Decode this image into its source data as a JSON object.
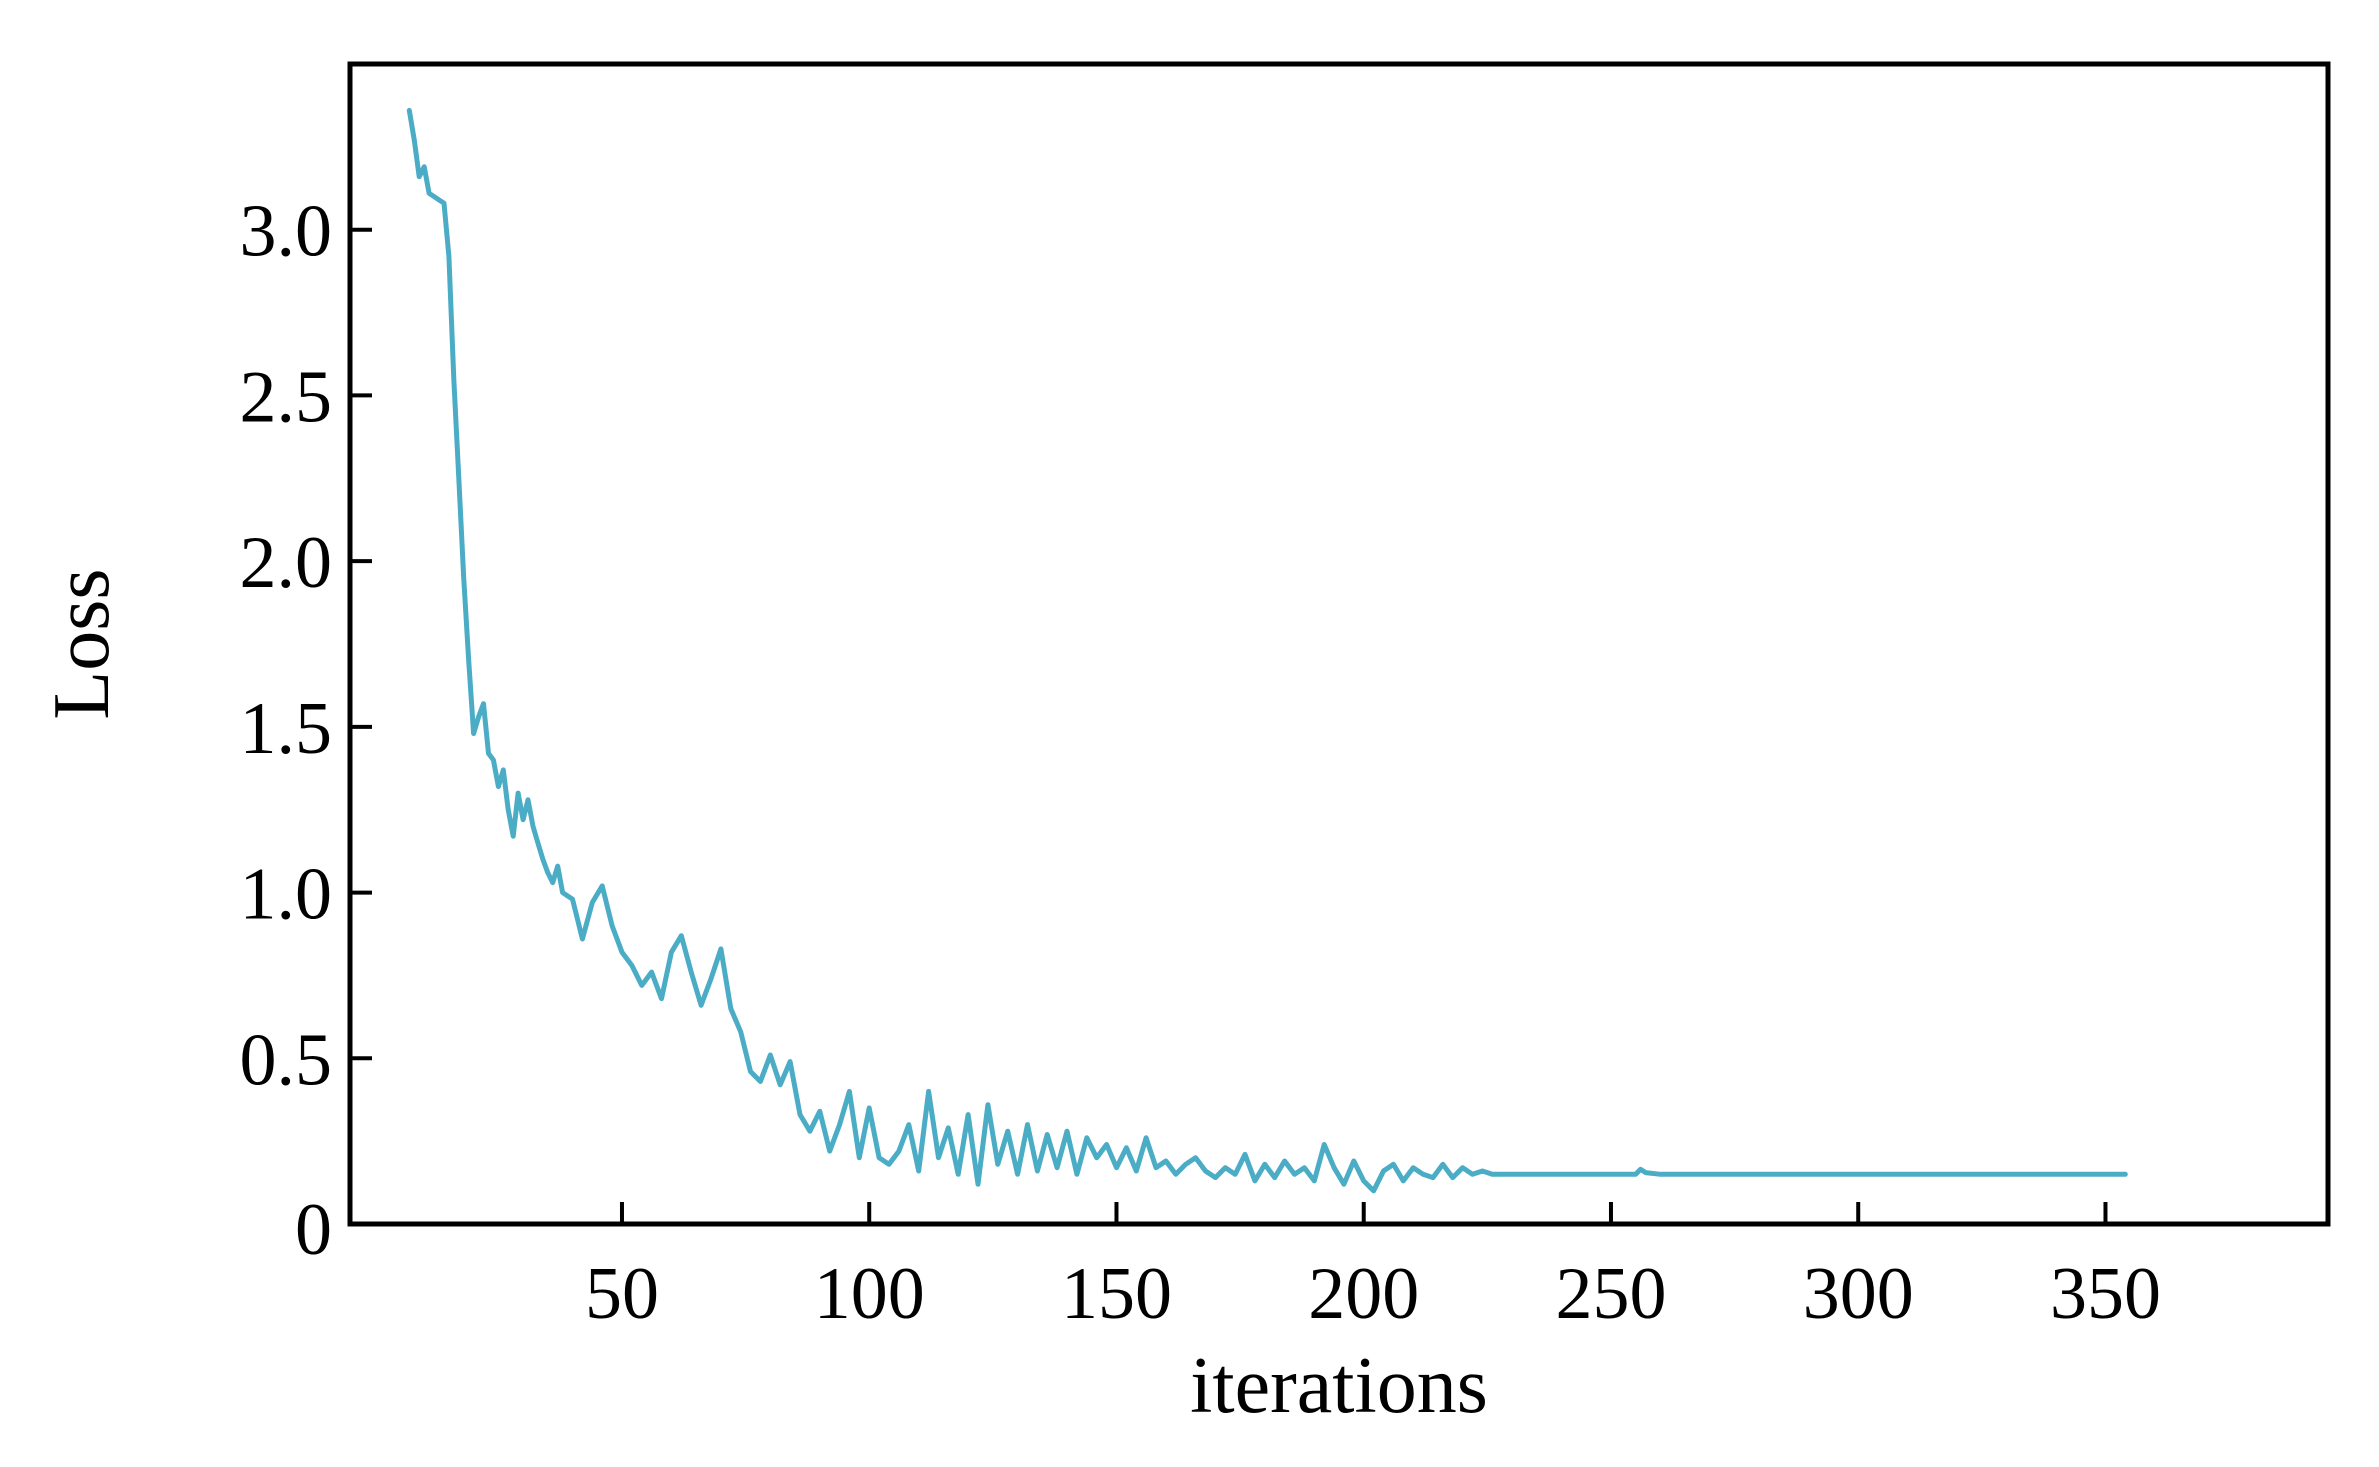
{
  "chart_data": {
    "type": "line",
    "title": "",
    "xlabel": "iterations",
    "ylabel": "Loss",
    "xlim": [
      -5,
      395
    ],
    "ylim": [
      0,
      3.5
    ],
    "grid": false,
    "xticks": [
      50,
      100,
      150,
      200,
      250,
      300,
      350
    ],
    "xtick_labels": [
      "50",
      "100",
      "150",
      "200",
      "250",
      "300",
      "350"
    ],
    "yticks": [
      0,
      0.5,
      1.0,
      1.5,
      2.0,
      2.5,
      3.0
    ],
    "ytick_labels": [
      "0",
      "0.5",
      "1.0",
      "1.5",
      "2.0",
      "2.5",
      "3.0"
    ],
    "colors": {
      "line": "#4bacc6",
      "frame": "#000000"
    },
    "series": [
      {
        "x": [
          7,
          8,
          9,
          10,
          11,
          12,
          13,
          14,
          15,
          16,
          17,
          18,
          19,
          20,
          21,
          22,
          23,
          24,
          25,
          26,
          27,
          28,
          29,
          30,
          31,
          32,
          33,
          34,
          35,
          36,
          37,
          38,
          40,
          42,
          44,
          46,
          48,
          50,
          52,
          54,
          56,
          58,
          60,
          62,
          64,
          66,
          68,
          70,
          72,
          74,
          76,
          78,
          80,
          82,
          84,
          86,
          88,
          90,
          92,
          94,
          96,
          98,
          100,
          102,
          104,
          106,
          108,
          110,
          112,
          114,
          116,
          118,
          120,
          122,
          124,
          126,
          128,
          130,
          132,
          134,
          136,
          138,
          140,
          142,
          144,
          146,
          148,
          150,
          152,
          154,
          156,
          158,
          160,
          162,
          164,
          166,
          168,
          170,
          172,
          174,
          176,
          178,
          180,
          182,
          184,
          186,
          188,
          190,
          192,
          194,
          196,
          198,
          200,
          202,
          204,
          206,
          208,
          210,
          212,
          214,
          216,
          218,
          220,
          222,
          224,
          226,
          228,
          230,
          240,
          250,
          255,
          256,
          257,
          260,
          280,
          300,
          320,
          340,
          354
        ],
        "y": [
          3.36,
          3.27,
          3.16,
          3.19,
          3.11,
          3.1,
          3.09,
          3.08,
          2.92,
          2.55,
          2.25,
          1.95,
          1.7,
          1.48,
          1.53,
          1.57,
          1.42,
          1.4,
          1.32,
          1.37,
          1.25,
          1.17,
          1.3,
          1.22,
          1.28,
          1.2,
          1.15,
          1.1,
          1.06,
          1.03,
          1.08,
          1.0,
          0.98,
          0.86,
          0.97,
          1.02,
          0.9,
          0.82,
          0.78,
          0.72,
          0.76,
          0.68,
          0.82,
          0.87,
          0.76,
          0.66,
          0.74,
          0.83,
          0.65,
          0.58,
          0.46,
          0.43,
          0.51,
          0.42,
          0.49,
          0.33,
          0.28,
          0.34,
          0.22,
          0.3,
          0.4,
          0.2,
          0.35,
          0.2,
          0.18,
          0.22,
          0.3,
          0.16,
          0.4,
          0.2,
          0.29,
          0.15,
          0.33,
          0.12,
          0.36,
          0.18,
          0.28,
          0.15,
          0.3,
          0.16,
          0.27,
          0.17,
          0.28,
          0.15,
          0.26,
          0.2,
          0.24,
          0.17,
          0.23,
          0.16,
          0.26,
          0.17,
          0.19,
          0.15,
          0.18,
          0.2,
          0.16,
          0.14,
          0.17,
          0.15,
          0.21,
          0.13,
          0.18,
          0.14,
          0.19,
          0.15,
          0.17,
          0.13,
          0.24,
          0.17,
          0.12,
          0.19,
          0.13,
          0.1,
          0.16,
          0.18,
          0.13,
          0.17,
          0.15,
          0.14,
          0.18,
          0.14,
          0.17,
          0.15,
          0.16,
          0.15,
          0.15,
          0.15,
          0.15,
          0.15,
          0.15,
          0.165,
          0.155,
          0.15,
          0.15,
          0.15,
          0.15,
          0.15,
          0.15
        ]
      }
    ]
  }
}
